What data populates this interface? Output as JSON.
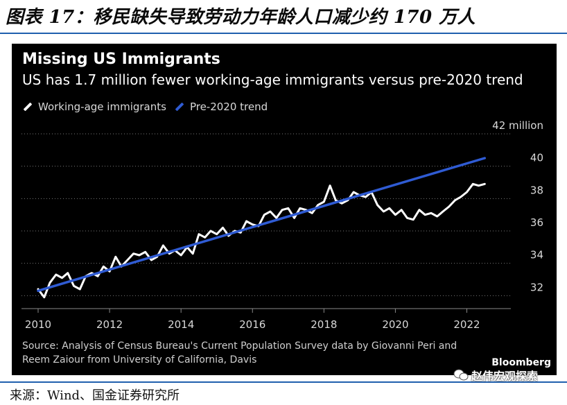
{
  "report": {
    "title": "图表 17：移民缺失导致劳动力年龄人口减少约 170 万人",
    "footer_source": "来源：Wind、国金证券研究所",
    "watermark": "赵伟宏观探索",
    "accent_color": "#1f5fae"
  },
  "chart_data": {
    "type": "line",
    "title": "Missing US Immigrants",
    "subtitle": "US has 1.7 million fewer working-age immigrants versus pre-2020 trend",
    "y_unit_label": "42 million",
    "ylim": [
      31.2,
      42
    ],
    "xlim": [
      2010,
      2022.65
    ],
    "x_ticks": [
      2010,
      2012,
      2014,
      2016,
      2018,
      2020,
      2022
    ],
    "x_tick_labels": [
      "2010",
      "2012",
      "2014",
      "2016",
      "2018",
      "2020",
      "2022"
    ],
    "y_ticks": [
      32,
      34,
      36,
      38,
      40
    ],
    "y_tick_labels": [
      "32",
      "34",
      "36",
      "38",
      "40"
    ],
    "grid": "horizontal, dotted",
    "legend_position": "top-left",
    "series": [
      {
        "name": "Working-age immigrants",
        "color": "#ffffff",
        "x": [
          2010.0,
          2010.17,
          2010.33,
          2010.5,
          2010.67,
          2010.83,
          2011.0,
          2011.17,
          2011.33,
          2011.5,
          2011.67,
          2011.83,
          2012.0,
          2012.17,
          2012.33,
          2012.5,
          2012.67,
          2012.83,
          2013.0,
          2013.17,
          2013.33,
          2013.5,
          2013.67,
          2013.83,
          2014.0,
          2014.17,
          2014.33,
          2014.5,
          2014.67,
          2014.83,
          2015.0,
          2015.17,
          2015.33,
          2015.5,
          2015.67,
          2015.83,
          2016.0,
          2016.17,
          2016.33,
          2016.5,
          2016.67,
          2016.83,
          2017.0,
          2017.17,
          2017.33,
          2017.5,
          2017.67,
          2017.83,
          2018.0,
          2018.17,
          2018.33,
          2018.5,
          2018.67,
          2018.83,
          2019.0,
          2019.17,
          2019.33,
          2019.5,
          2019.67,
          2019.83,
          2020.0,
          2020.17,
          2020.33,
          2020.5,
          2020.67,
          2020.83,
          2021.0,
          2021.17,
          2021.33,
          2021.5,
          2021.67,
          2021.83,
          2022.0,
          2022.17,
          2022.33,
          2022.5
        ],
        "y": [
          32.4,
          31.9,
          32.8,
          33.3,
          33.1,
          33.4,
          32.6,
          32.4,
          33.2,
          33.4,
          33.2,
          33.8,
          33.5,
          34.4,
          33.8,
          34.2,
          34.6,
          34.5,
          34.7,
          34.2,
          34.4,
          35.1,
          34.6,
          34.8,
          34.5,
          35.0,
          34.6,
          35.8,
          35.6,
          36.0,
          35.8,
          36.2,
          35.7,
          36.0,
          35.9,
          36.6,
          36.4,
          36.3,
          37.0,
          37.2,
          36.8,
          37.3,
          37.4,
          36.8,
          37.4,
          37.3,
          37.1,
          37.6,
          37.8,
          38.8,
          37.9,
          37.7,
          37.9,
          38.4,
          38.2,
          38.1,
          38.4,
          37.6,
          37.2,
          37.4,
          37.0,
          37.3,
          36.8,
          36.7,
          37.3,
          37.0,
          37.1,
          36.9,
          37.2,
          37.5,
          37.9,
          38.1,
          38.4,
          38.9,
          38.8,
          38.9
        ]
      },
      {
        "name": "Pre-2020 trend",
        "color": "#2f5bd3",
        "x": [
          2010.0,
          2022.5
        ],
        "y": [
          32.3,
          40.5
        ]
      }
    ],
    "source_text": "Source: Analysis of Census Bureau's Current Population Survey data by Giovanni Peri and Reem Zaiour from University of California, Davis",
    "brand": "Bloomberg"
  }
}
